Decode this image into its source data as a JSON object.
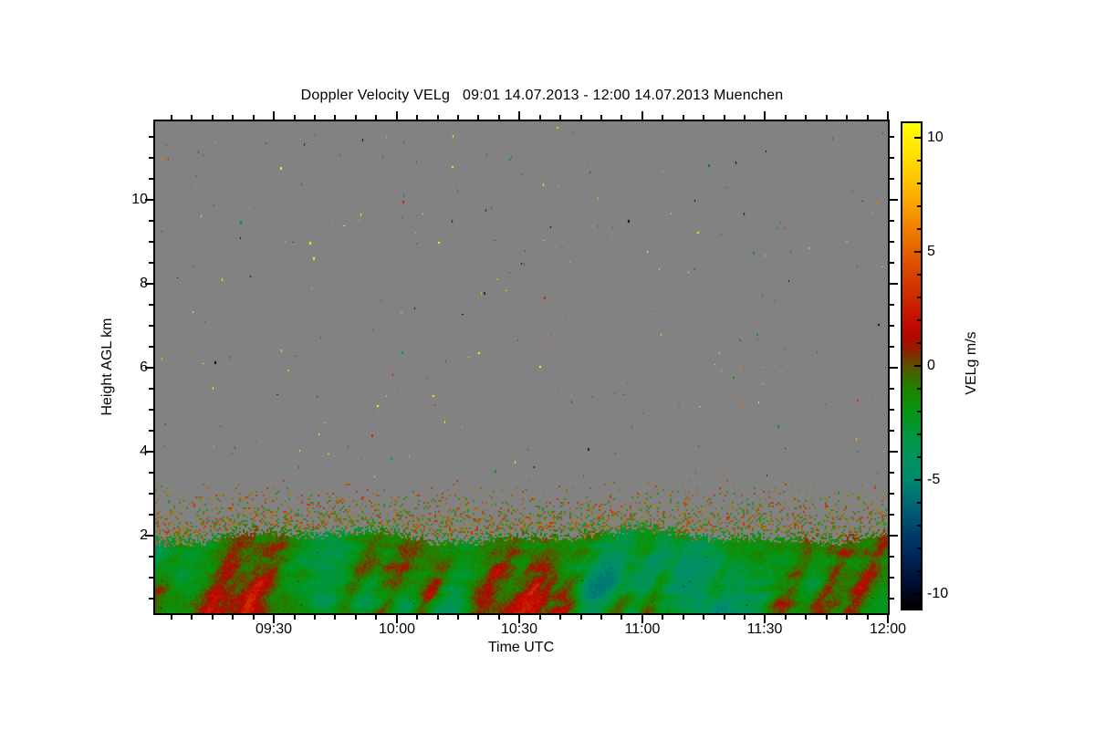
{
  "title": "Doppler Velocity VELg   09:01 14.07.2013 - 12:00 14.07.2013 Muenchen",
  "chart_data": {
    "type": "heatmap",
    "title": "Doppler Velocity VELg   09:01 14.07.2013 - 12:00 14.07.2013 Muenchen",
    "station": "Muenchen",
    "date": "14.07.2013",
    "time_start": "09:01",
    "time_end": "12:00",
    "xlabel": "Time UTC",
    "ylabel": "Height AGL km",
    "x_total_minutes": 179,
    "x_major_ticks": [
      {
        "label": "09:30",
        "minute": 29
      },
      {
        "label": "10:00",
        "minute": 59
      },
      {
        "label": "10:30",
        "minute": 89
      },
      {
        "label": "11:00",
        "minute": 119
      },
      {
        "label": "11:30",
        "minute": 149
      },
      {
        "label": "12:00",
        "minute": 179
      }
    ],
    "x_minor_step_minutes": 5,
    "y_axis_km": {
      "min": 0.15,
      "max": 11.87,
      "major_ticks": [
        2,
        4,
        6,
        8,
        10
      ],
      "minor_step": 0.5
    },
    "colorbar": {
      "label": "VELg m/s",
      "vmin": -10.64,
      "vmax": 10.64,
      "major_ticks": [
        10,
        5,
        0,
        -5,
        -10
      ],
      "minor_step": 1
    },
    "colors": {
      "no_data_gray": "#828282",
      "background": "#FFFFFF",
      "axis": "#000000"
    },
    "colormap_stops": [
      [
        -10.64,
        "#000000"
      ],
      [
        -9.5,
        "#000E34"
      ],
      [
        -8.5,
        "#002254"
      ],
      [
        -7.5,
        "#003A68"
      ],
      [
        -6.5,
        "#005872"
      ],
      [
        -5.7,
        "#007276"
      ],
      [
        -5,
        "#008A6E"
      ],
      [
        -4,
        "#00945F"
      ],
      [
        -3,
        "#00983E"
      ],
      [
        -2,
        "#059614"
      ],
      [
        -1,
        "#1E8400"
      ],
      [
        -0.4,
        "#3E6A00"
      ],
      [
        0,
        "#5C5200"
      ],
      [
        0.35,
        "#763A00"
      ],
      [
        0.8,
        "#961C00"
      ],
      [
        1.3,
        "#B20800"
      ],
      [
        2,
        "#C40E00"
      ],
      [
        3,
        "#CE2A00"
      ],
      [
        4,
        "#D84202"
      ],
      [
        5,
        "#E56000"
      ],
      [
        6,
        "#F07E00"
      ],
      [
        7,
        "#FAA000"
      ],
      [
        8,
        "#FFC000"
      ],
      [
        9.3,
        "#FFE200"
      ],
      [
        10.64,
        "#FFFF00"
      ]
    ],
    "features": {
      "no_data_above_km": 3.3,
      "aerosol_speckle_band_km": [
        1.95,
        3.3
      ],
      "boundary_layer_top_km": 1.9,
      "noise_speckle_count": 270,
      "updraft_plumes": [
        {
          "minute": 5,
          "strength": 4.2,
          "width_min": 3.1
        },
        {
          "minute": 21,
          "strength": 5.2,
          "width_min": 4.5
        },
        {
          "minute": 30,
          "strength": 5.8,
          "width_min": 3.6
        },
        {
          "minute": 53,
          "strength": 3.6,
          "width_min": 2.7
        },
        {
          "minute": 62,
          "strength": 5.0,
          "width_min": 3.6
        },
        {
          "minute": 72,
          "strength": 4.0,
          "width_min": 2.7
        },
        {
          "minute": 86,
          "strength": 5.4,
          "width_min": 4.0
        },
        {
          "minute": 97,
          "strength": 6.2,
          "width_min": 4.9
        },
        {
          "minute": 106,
          "strength": 4.6,
          "width_min": 3.1
        },
        {
          "minute": 119,
          "strength": 4.4,
          "width_min": 3.6
        },
        {
          "minute": 127,
          "strength": 3.4,
          "width_min": 2.2
        },
        {
          "minute": 141,
          "strength": 2.6,
          "width_min": 1.8
        },
        {
          "minute": 159,
          "strength": 5.0,
          "width_min": 3.6
        },
        {
          "minute": 169,
          "strength": 5.6,
          "width_min": 4.0
        },
        {
          "minute": 177,
          "strength": 4.6,
          "width_min": 2.7
        }
      ],
      "downdraft_patches": [
        {
          "minute": 42,
          "strength": 1.8,
          "width_min": 6
        },
        {
          "minute": 74,
          "strength": 1.5,
          "width_min": 4.5
        },
        {
          "minute": 115,
          "strength": 2.6,
          "width_min": 16
        },
        {
          "minute": 134,
          "strength": 1.6,
          "width_min": 7
        }
      ],
      "speckle_band_palette": [
        "#8A7A1E",
        "#9C8A10",
        "#A85E14",
        "#BE3A10",
        "#2E8C28"
      ],
      "noise_dot_values": [
        10.3,
        8,
        5.5,
        3,
        -2,
        -3.5,
        -5.5,
        -8,
        -10.3
      ]
    }
  }
}
